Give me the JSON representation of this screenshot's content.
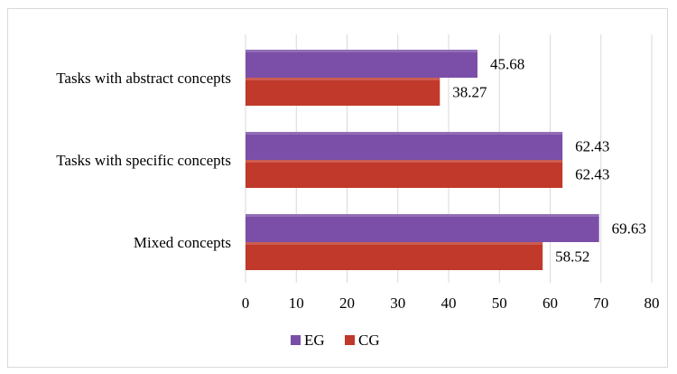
{
  "chart_data": {
    "type": "bar",
    "orientation": "horizontal",
    "categories": [
      "Tasks with abstract concepts",
      "Tasks with specific concepts",
      "Mixed concepts"
    ],
    "series": [
      {
        "name": "EG",
        "values": [
          45.68,
          62.43,
          69.63
        ],
        "color": "#7b4fa8"
      },
      {
        "name": "CG",
        "values": [
          38.27,
          62.43,
          58.52
        ],
        "color": "#c0392b"
      }
    ],
    "title": "",
    "xlabel": "",
    "ylabel": "",
    "xlim": [
      0,
      80
    ],
    "ticks": [
      0,
      10,
      20,
      30,
      40,
      50,
      60,
      70,
      80
    ],
    "grid": true,
    "legend": "bottom"
  }
}
